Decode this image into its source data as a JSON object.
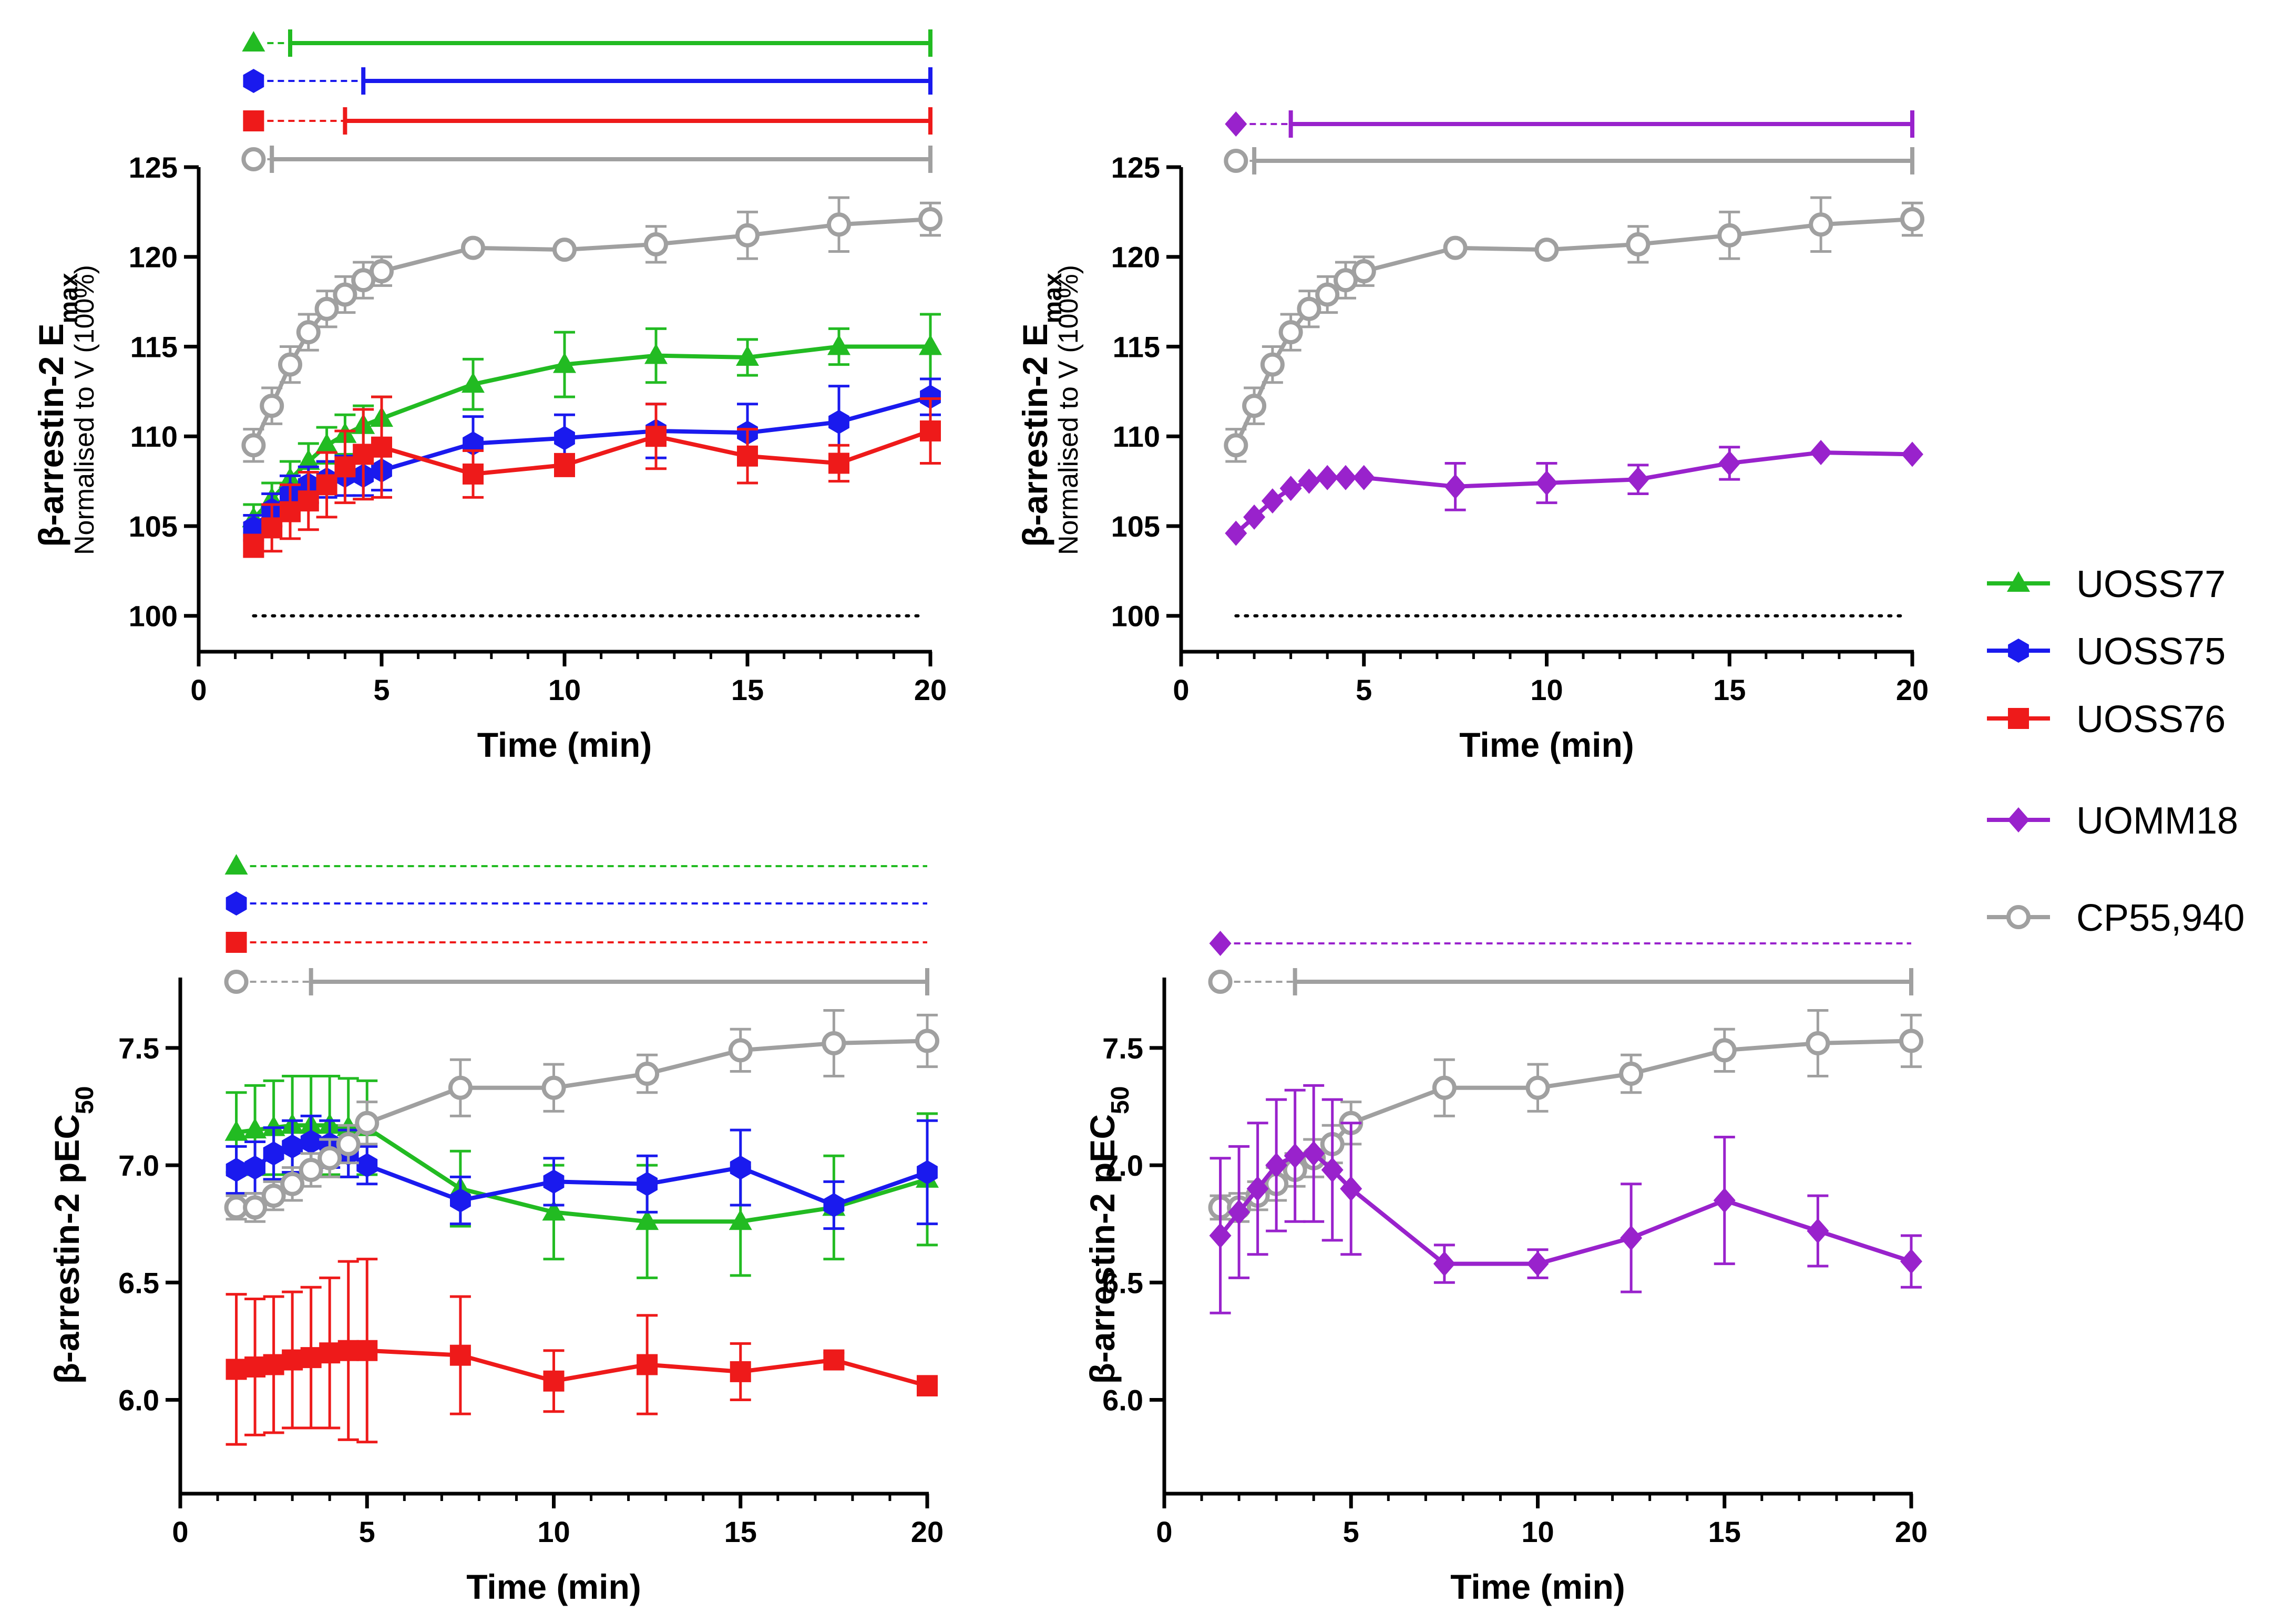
{
  "colors": {
    "UOSS77": "#22bb22",
    "UOSS75": "#1a1aee",
    "UOSS76": "#ee1a1a",
    "UOMM18": "#9922cc",
    "CP55940": "#a0a0a0"
  },
  "legend": [
    {
      "key": "UOSS77",
      "label": "UOSS77",
      "marker": "triangle"
    },
    {
      "key": "UOSS75",
      "label": "UOSS75",
      "marker": "hexagon"
    },
    {
      "key": "UOSS76",
      "label": "UOSS76",
      "marker": "square"
    },
    {
      "key": "UOMM18",
      "label": "UOMM18",
      "marker": "diamond"
    },
    {
      "key": "CP55940",
      "label": "CP55,940",
      "marker": "circle-open"
    }
  ],
  "chart_data": [
    {
      "id": "emax-left",
      "type": "line",
      "ylabel": "β-arrestin-2 E",
      "ylabel_sub": "max",
      "ylabel2": "Normalised to V (100%)",
      "xlabel": "Time (min)",
      "xlim": [
        0,
        20
      ],
      "ylim": [
        98,
        125
      ],
      "xticks": [
        "0",
        "5",
        "10",
        "15",
        "20"
      ],
      "yticks": [
        "100",
        "105",
        "110",
        "115",
        "120",
        "125"
      ],
      "baseline": 100,
      "series": [
        {
          "key": "UOSS77",
          "x": [
            1.5,
            2,
            2.5,
            3,
            3.5,
            4,
            4.5,
            5,
            7.5,
            10,
            12.5,
            15,
            17.5,
            20
          ],
          "y": [
            105.4,
            106.5,
            107.6,
            108.6,
            109.5,
            110.1,
            110.6,
            111.0,
            112.9,
            114.0,
            114.5,
            114.4,
            115.0,
            115.0
          ],
          "err": [
            0.8,
            0.9,
            1.0,
            1.0,
            1.0,
            1.1,
            1.1,
            1.2,
            1.4,
            1.8,
            1.5,
            1.0,
            1.0,
            1.8
          ]
        },
        {
          "key": "UOSS75",
          "x": [
            1.5,
            2,
            2.5,
            3,
            3.5,
            4,
            4.5,
            5,
            7.5,
            10,
            12.5,
            15,
            17.5,
            20
          ],
          "y": [
            104.9,
            105.9,
            106.8,
            107.3,
            107.6,
            107.8,
            107.8,
            108.1,
            109.6,
            109.9,
            110.3,
            110.2,
            110.8,
            112.2
          ],
          "err": [
            0.7,
            0.9,
            1.0,
            1.0,
            1.0,
            1.1,
            1.1,
            1.1,
            1.5,
            1.3,
            1.5,
            1.6,
            2.0,
            1.0
          ]
        },
        {
          "key": "UOSS76",
          "x": [
            1.5,
            2,
            2.5,
            3,
            3.5,
            4,
            4.5,
            5,
            7.5,
            10,
            12.5,
            15,
            17.5,
            20
          ],
          "y": [
            103.9,
            104.9,
            105.8,
            106.4,
            107.3,
            108.3,
            109.0,
            109.4,
            107.9,
            108.4,
            110.0,
            108.9,
            108.5,
            110.3
          ],
          "err": [
            0.6,
            1.3,
            1.5,
            1.6,
            1.8,
            2.0,
            2.5,
            2.8,
            1.3,
            0.6,
            1.8,
            1.5,
            1.0,
            1.8
          ]
        },
        {
          "key": "CP55940",
          "x": [
            1.5,
            2,
            2.5,
            3,
            3.5,
            4,
            4.5,
            5,
            7.5,
            10,
            12.5,
            15,
            17.5,
            20
          ],
          "y": [
            109.5,
            111.7,
            114.0,
            115.8,
            117.1,
            117.9,
            118.7,
            119.2,
            120.5,
            120.4,
            120.7,
            121.2,
            121.8,
            122.1
          ],
          "err": [
            0.9,
            1.0,
            1.0,
            1.0,
            1.0,
            1.0,
            1.0,
            0.8,
            0,
            0,
            1.0,
            1.3,
            1.5,
            0.9
          ]
        }
      ],
      "sig_bars": [
        {
          "key": "UOSS77",
          "start": 2.5
        },
        {
          "key": "UOSS75",
          "start": 4.5
        },
        {
          "key": "UOSS76",
          "start": 4.0
        },
        {
          "key": "CP55940",
          "start": 2.0
        }
      ]
    },
    {
      "id": "emax-right",
      "type": "line",
      "ylabel": "β-arrestin-2 E",
      "ylabel_sub": "max",
      "ylabel2": "Normalised to V (100%)",
      "xlabel": "Time (min)",
      "xlim": [
        0,
        20
      ],
      "ylim": [
        98,
        125
      ],
      "xticks": [
        "0",
        "5",
        "10",
        "15",
        "20"
      ],
      "yticks": [
        "100",
        "105",
        "110",
        "115",
        "120",
        "125"
      ],
      "baseline": 100,
      "series": [
        {
          "key": "CP55940",
          "x": [
            1.5,
            2,
            2.5,
            3,
            3.5,
            4,
            4.5,
            5,
            7.5,
            10,
            12.5,
            15,
            17.5,
            20
          ],
          "y": [
            109.5,
            111.7,
            114.0,
            115.8,
            117.1,
            117.9,
            118.7,
            119.2,
            120.5,
            120.4,
            120.7,
            121.2,
            121.8,
            122.1
          ],
          "err": [
            0.9,
            1.0,
            1.0,
            1.0,
            1.0,
            1.0,
            1.0,
            0.8,
            0,
            0,
            1.0,
            1.3,
            1.5,
            0.9
          ]
        },
        {
          "key": "UOMM18",
          "x": [
            1.5,
            2,
            2.5,
            3,
            3.5,
            4,
            4.5,
            5,
            7.5,
            10,
            12.5,
            15,
            17.5,
            20
          ],
          "y": [
            104.6,
            105.5,
            106.4,
            107.1,
            107.5,
            107.7,
            107.7,
            107.7,
            107.2,
            107.4,
            107.6,
            108.5,
            109.1,
            109.0
          ],
          "err": [
            0,
            0,
            0,
            0,
            0,
            0,
            0,
            0,
            1.3,
            1.1,
            0.8,
            0.9,
            0,
            0
          ]
        }
      ],
      "sig_bars": [
        {
          "key": "UOMM18",
          "start": 3.0
        },
        {
          "key": "CP55940",
          "start": 2.0
        }
      ]
    },
    {
      "id": "pec50-left",
      "type": "line",
      "ylabel": "β-arrestin-2 pEC",
      "ylabel_sub": "50",
      "xlabel": "Time (min)",
      "xlim": [
        0,
        20
      ],
      "ylim": [
        5.6,
        7.8
      ],
      "xticks": [
        "0",
        "5",
        "10",
        "15",
        "20"
      ],
      "yticks": [
        "6.0",
        "6.5",
        "7.0",
        "7.5"
      ],
      "series": [
        {
          "key": "UOSS77",
          "x": [
            1.5,
            2,
            2.5,
            3,
            3.5,
            4,
            4.5,
            5,
            7.5,
            10,
            12.5,
            15,
            17.5,
            20
          ],
          "y": [
            7.14,
            7.15,
            7.16,
            7.17,
            7.17,
            7.17,
            7.16,
            7.16,
            6.9,
            6.8,
            6.76,
            6.76,
            6.82,
            6.94
          ],
          "err": [
            0.17,
            0.19,
            0.2,
            0.21,
            0.21,
            0.21,
            0.21,
            0.2,
            0.16,
            0.2,
            0.24,
            0.23,
            0.22,
            0.28
          ]
        },
        {
          "key": "UOSS75",
          "x": [
            1.5,
            2,
            2.5,
            3,
            3.5,
            4,
            4.5,
            5,
            7.5,
            10,
            12.5,
            15,
            17.5,
            20
          ],
          "y": [
            6.98,
            6.99,
            7.05,
            7.08,
            7.1,
            7.09,
            7.05,
            7.0,
            6.85,
            6.93,
            6.92,
            6.99,
            6.83,
            6.97
          ],
          "err": [
            0.1,
            0.11,
            0.11,
            0.11,
            0.11,
            0.1,
            0.1,
            0.08,
            0.1,
            0.1,
            0.12,
            0.16,
            0.1,
            0.22
          ]
        },
        {
          "key": "UOSS76",
          "x": [
            1.5,
            2,
            2.5,
            3,
            3.5,
            4,
            4.5,
            5,
            7.5,
            10,
            12.5,
            15,
            17.5,
            20
          ],
          "y": [
            6.13,
            6.14,
            6.15,
            6.17,
            6.18,
            6.2,
            6.21,
            6.21,
            6.19,
            6.08,
            6.15,
            6.12,
            6.17,
            6.06
          ],
          "err": [
            0.32,
            0.29,
            0.29,
            0.29,
            0.3,
            0.32,
            0.38,
            0.39,
            0.25,
            0.13,
            0.21,
            0.12,
            0.03,
            0.04
          ]
        },
        {
          "key": "CP55940",
          "x": [
            1.5,
            2,
            2.5,
            3,
            3.5,
            4,
            4.5,
            5,
            7.5,
            10,
            12.5,
            15,
            17.5,
            20
          ],
          "y": [
            6.82,
            6.82,
            6.87,
            6.92,
            6.98,
            7.03,
            7.09,
            7.18,
            7.33,
            7.33,
            7.39,
            7.49,
            7.52,
            7.53
          ],
          "err": [
            0.05,
            0.06,
            0.06,
            0.07,
            0.07,
            0.08,
            0.08,
            0.09,
            0.12,
            0.1,
            0.08,
            0.09,
            0.14,
            0.11
          ]
        }
      ],
      "sig_bars": [
        {
          "key": "UOSS77",
          "start": null
        },
        {
          "key": "UOSS75",
          "start": null
        },
        {
          "key": "UOSS76",
          "start": null
        },
        {
          "key": "CP55940",
          "start": 3.5
        }
      ]
    },
    {
      "id": "pec50-right",
      "type": "line",
      "ylabel": "β-arrestin-2 pEC",
      "ylabel_sub": "50",
      "xlabel": "Time (min)",
      "xlim": [
        0,
        20
      ],
      "ylim": [
        5.6,
        7.8
      ],
      "xticks": [
        "0",
        "5",
        "10",
        "15",
        "20"
      ],
      "yticks": [
        "6.0",
        "6.5",
        "7.0",
        "7.5"
      ],
      "series": [
        {
          "key": "CP55940",
          "x": [
            1.5,
            2,
            2.5,
            3,
            3.5,
            4,
            4.5,
            5,
            7.5,
            10,
            12.5,
            15,
            17.5,
            20
          ],
          "y": [
            6.82,
            6.82,
            6.87,
            6.92,
            6.98,
            7.03,
            7.09,
            7.18,
            7.33,
            7.33,
            7.39,
            7.49,
            7.52,
            7.53
          ],
          "err": [
            0.05,
            0.06,
            0.06,
            0.07,
            0.07,
            0.08,
            0.08,
            0.09,
            0.12,
            0.1,
            0.08,
            0.09,
            0.14,
            0.11
          ]
        },
        {
          "key": "UOMM18",
          "x": [
            1.5,
            2,
            2.5,
            3,
            3.5,
            4,
            4.5,
            5,
            7.5,
            10,
            12.5,
            15,
            17.5,
            20
          ],
          "y": [
            6.7,
            6.8,
            6.9,
            7.0,
            7.04,
            7.05,
            6.98,
            6.9,
            6.58,
            6.58,
            6.69,
            6.85,
            6.72,
            6.59
          ],
          "err": [
            0.33,
            0.28,
            0.28,
            0.28,
            0.28,
            0.29,
            0.3,
            0.28,
            0.08,
            0.06,
            0.23,
            0.27,
            0.15,
            0.11
          ]
        }
      ],
      "sig_bars": [
        {
          "key": "UOMM18",
          "start": null
        },
        {
          "key": "CP55940",
          "start": 3.5
        }
      ]
    }
  ]
}
